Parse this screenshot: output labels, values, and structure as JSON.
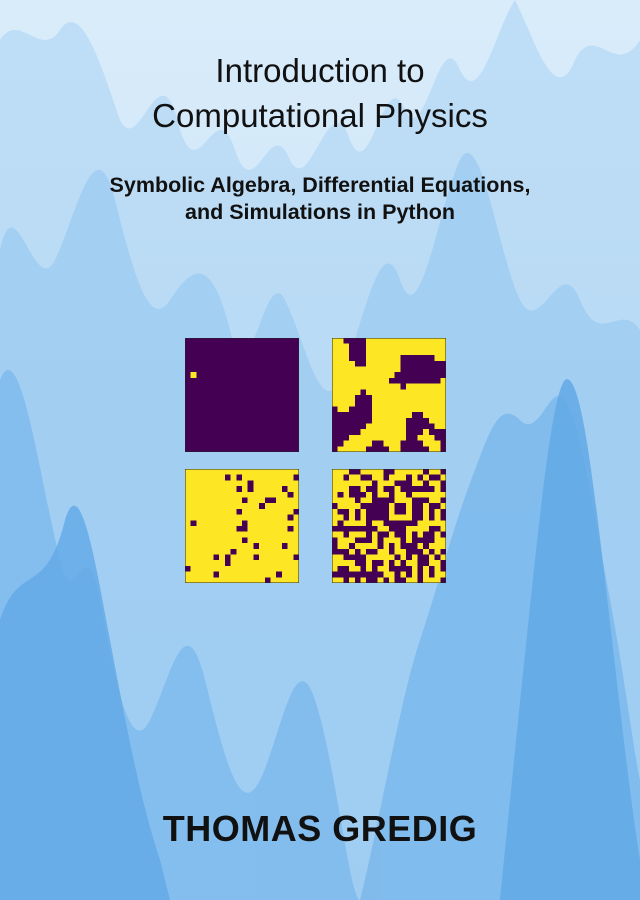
{
  "book": {
    "title_lines": [
      "Introduction to",
      "Computational Physics"
    ],
    "subtitle_lines": [
      "Symbolic Algebra, Differential Equations,",
      "and Simulations in Python"
    ],
    "author": "THOMAS GREDIG"
  },
  "colors": {
    "sky_top": "#d9ecfa",
    "sky_bottom": "#bcdcf6",
    "mountain_light": "#a9d2f3",
    "mountain_mid": "#86bfee",
    "mountain_dark": "#62a9e6",
    "spin_up": "#fde725",
    "spin_down": "#440154"
  },
  "lattices": {
    "grid_size": 20,
    "description_order": [
      "top-left",
      "top-right",
      "bottom-left",
      "bottom-right"
    ],
    "items": [
      {
        "name": "lattice-top-left",
        "up_fraction": 0.003,
        "pattern": "down-dominant",
        "seed": 11
      },
      {
        "name": "lattice-top-right",
        "up_fraction": 0.55,
        "pattern": "clustered",
        "seed": 23
      },
      {
        "name": "lattice-bottom-left",
        "up_fraction": 0.93,
        "pattern": "up-dominant",
        "seed": 37
      },
      {
        "name": "lattice-bottom-right",
        "up_fraction": 0.5,
        "pattern": "random",
        "seed": 53
      }
    ]
  }
}
